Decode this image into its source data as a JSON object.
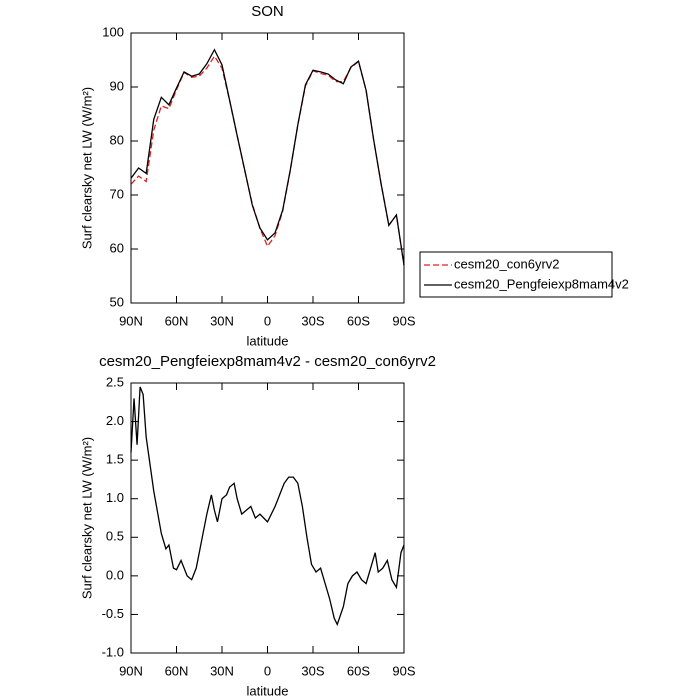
{
  "chart_data": [
    {
      "type": "line",
      "title": "SON",
      "xlabel": "latitude",
      "ylabel": "Surf clearsky net LW (W/m²)",
      "x": [
        90,
        85,
        80,
        75,
        70,
        65,
        60,
        55,
        50,
        45,
        40,
        35,
        30,
        25,
        20,
        15,
        10,
        5,
        0,
        -5,
        -10,
        -15,
        -20,
        -25,
        -30,
        -35,
        -40,
        -45,
        -50,
        -55,
        -60,
        -65,
        -70,
        -75,
        -80,
        -85,
        -90
      ],
      "series": [
        {
          "name": "cesm20_con6yrv2",
          "color": "#e02020",
          "style": "dashed",
          "values": [
            72,
            73.5,
            72.5,
            82,
            86.5,
            86,
            89.5,
            92.7,
            91.8,
            92,
            93.5,
            95.7,
            93.5,
            87.5,
            81,
            74.5,
            68.3,
            63.8,
            60.5,
            62.5,
            67,
            74.5,
            83,
            90.2,
            93,
            92.5,
            92.2,
            91,
            91,
            93.6,
            94.7,
            89.4,
            80.2,
            71.9,
            64.4,
            66.3,
            57
          ]
        },
        {
          "name": "cesm20_Pengfeiexp8mam4v2",
          "color": "#000000",
          "style": "solid",
          "values": [
            73.1,
            75,
            74,
            84,
            88.1,
            86.7,
            89.8,
            92.8,
            92,
            92.4,
            94.3,
            96.9,
            94.1,
            87.6,
            81,
            74.6,
            68.1,
            63.9,
            61.7,
            63,
            67.2,
            74.6,
            83,
            90.4,
            93.1,
            92.8,
            92.4,
            91.3,
            90.6,
            93.7,
            94.8,
            89.4,
            80.2,
            71.9,
            64.4,
            66.3,
            57
          ]
        }
      ],
      "xlim": [
        90,
        -90
      ],
      "xticks": [
        {
          "value": 90,
          "label": "90N"
        },
        {
          "value": 60,
          "label": "60N"
        },
        {
          "value": 30,
          "label": "30N"
        },
        0,
        {
          "value": -30,
          "label": "30S"
        },
        {
          "value": -60,
          "label": "60S"
        },
        {
          "value": -90,
          "label": "90S"
        }
      ],
      "ylim": [
        50,
        100
      ],
      "yticks": [
        50,
        60,
        70,
        80,
        90,
        100
      ],
      "legend": "right"
    },
    {
      "type": "line",
      "title": "cesm20_Pengfeiexp8mam4v2 - cesm20_con6yrv2",
      "xlabel": "latitude",
      "ylabel": "Surf clearsky net LW (W/m²)",
      "x": [
        90,
        88,
        86,
        84,
        82,
        80,
        75,
        70,
        67,
        65,
        62,
        60,
        57,
        53,
        50,
        47,
        43,
        40,
        37,
        35,
        33,
        30,
        27,
        25,
        22,
        20,
        17,
        14,
        11,
        8,
        5,
        0,
        -5,
        -8,
        -11,
        -14,
        -17,
        -20,
        -23,
        -26,
        -29,
        -32,
        -35,
        -38,
        -41,
        -44,
        -46,
        -50,
        -53,
        -56,
        -59,
        -62,
        -65,
        -68,
        -71,
        -73,
        -76,
        -79,
        -82,
        -85,
        -88,
        -90
      ],
      "series": [
        {
          "color": "#000000",
          "style": "solid",
          "values": [
            1.6,
            2.3,
            1.7,
            2.45,
            2.35,
            1.8,
            1.1,
            0.55,
            0.35,
            0.4,
            0.1,
            0.08,
            0.2,
            0,
            -0.05,
            0.1,
            0.5,
            0.8,
            1.05,
            0.85,
            0.7,
            1,
            1.05,
            1.15,
            1.2,
            1,
            0.8,
            0.85,
            0.9,
            0.75,
            0.8,
            0.7,
            0.9,
            1.05,
            1.2,
            1.28,
            1.28,
            1.2,
            0.9,
            0.5,
            0.15,
            0.05,
            0.1,
            -0.1,
            -0.3,
            -0.55,
            -0.63,
            -0.4,
            -0.1,
            0,
            0.05,
            -0.05,
            -0.1,
            0.1,
            0.3,
            0.05,
            0.1,
            0.2,
            -0.05,
            -0.15,
            0.3,
            0.4
          ]
        }
      ],
      "xlim": [
        90,
        -90
      ],
      "xticks": [
        {
          "value": 90,
          "label": "90N"
        },
        {
          "value": 60,
          "label": "60N"
        },
        {
          "value": 30,
          "label": "30N"
        },
        0,
        {
          "value": -30,
          "label": "30S"
        },
        {
          "value": -60,
          "label": "60S"
        },
        {
          "value": -90,
          "label": "90S"
        }
      ],
      "ylim": [
        -1,
        2.5
      ],
      "yticks": [
        {
          "value": -1,
          "label": "-1.0"
        },
        -0.5,
        {
          "value": 0,
          "label": "0.0"
        },
        0.5,
        {
          "value": 1,
          "label": "1.0"
        },
        1.5,
        {
          "value": 2,
          "label": "2.0"
        },
        2.5
      ]
    }
  ]
}
